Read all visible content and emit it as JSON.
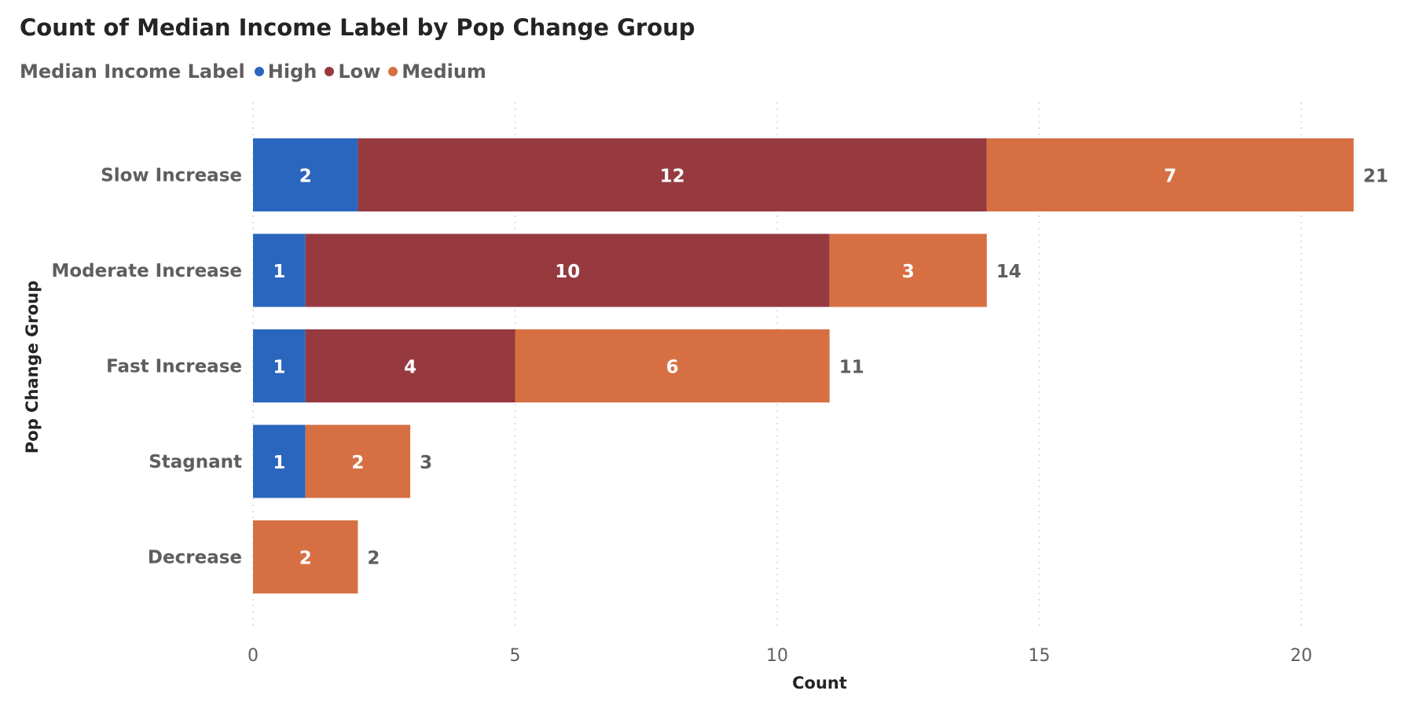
{
  "chart_data": {
    "type": "bar",
    "orientation": "horizontal",
    "stacked": true,
    "title": "Count of Median Income Label by Pop Change Group",
    "legend_title": "Median Income Label",
    "legend_position": "top-left",
    "xlabel": "Count",
    "ylabel": "Pop Change Group",
    "xlim": [
      0,
      21.5
    ],
    "xticks": [
      0,
      5,
      10,
      15,
      20
    ],
    "grid": true,
    "categories": [
      "Slow Increase",
      "Moderate Increase",
      "Fast Increase",
      "Stagnant",
      "Decrease"
    ],
    "series": [
      {
        "name": "High",
        "color": "#2b66be",
        "values": [
          2,
          1,
          1,
          1,
          0
        ]
      },
      {
        "name": "Low",
        "color": "#963a40",
        "values": [
          12,
          10,
          4,
          0,
          0
        ]
      },
      {
        "name": "Medium",
        "color": "#d67043",
        "values": [
          7,
          3,
          6,
          2,
          2
        ]
      }
    ],
    "totals": [
      21,
      14,
      11,
      3,
      2
    ]
  }
}
